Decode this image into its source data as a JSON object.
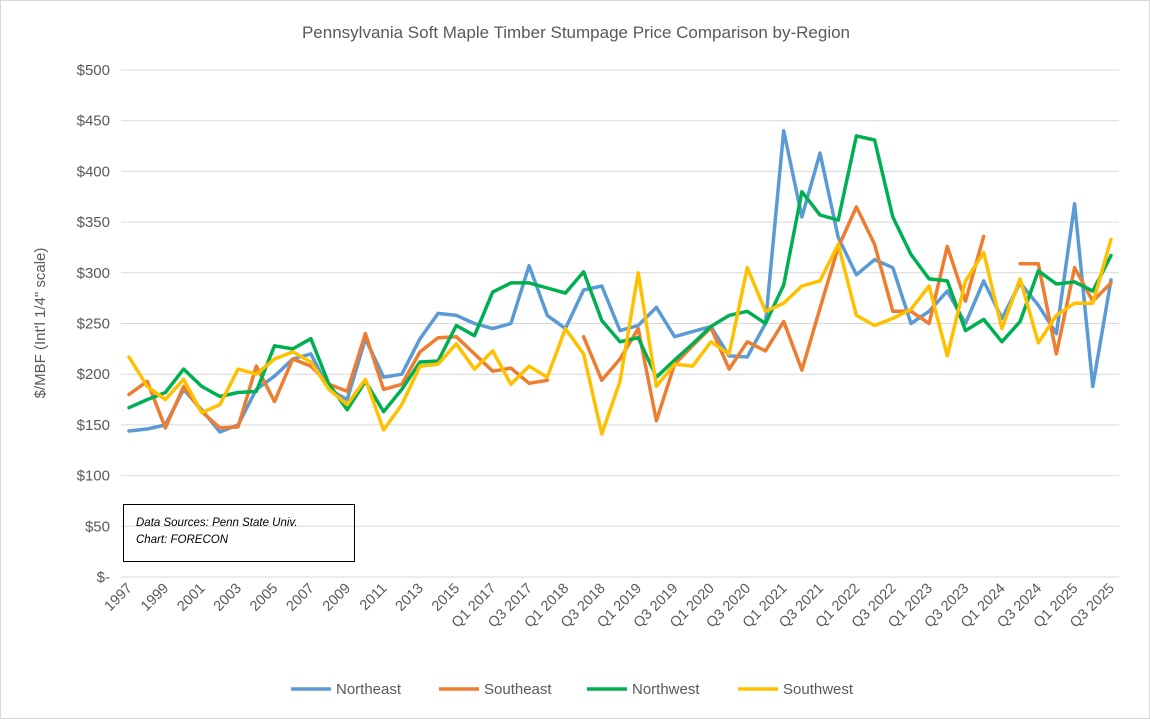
{
  "chart_data": {
    "type": "line",
    "title": "Pennsylvania Soft Maple Timber Stumpage Price Comparison by-Region",
    "xlabel": "",
    "ylabel": "$/MBF (Int'l 1/4\" scale)",
    "ylim": [
      0,
      500
    ],
    "yticks": [
      0,
      50,
      100,
      150,
      200,
      250,
      300,
      350,
      400,
      450,
      500
    ],
    "ytick_labels": [
      "$-",
      "$50",
      "$100",
      "$150",
      "$200",
      "$250",
      "$300",
      "$350",
      "$400",
      "$450",
      "$500"
    ],
    "grid": true,
    "legend_position": "bottom",
    "categories": [
      "1997",
      "1998",
      "1999",
      "2000",
      "2001",
      "2002",
      "2003",
      "2004",
      "2005",
      "2006",
      "2007",
      "2008",
      "2009",
      "2010",
      "2011",
      "2012",
      "2013",
      "2014",
      "2015",
      "2016",
      "Q1 2017",
      "Q2 2017",
      "Q3 2017",
      "Q4 2017",
      "Q1 2018",
      "Q2 2018",
      "Q3 2018",
      "Q4 2018",
      "Q1 2019",
      "Q2 2019",
      "Q3 2019",
      "Q4 2019",
      "Q1 2020",
      "Q2 2020",
      "Q3 2020",
      "Q4 2020",
      "Q1 2021",
      "Q2 2021",
      "Q3 2021",
      "Q4 2021",
      "Q1 2022",
      "Q2 2022",
      "Q3 2022",
      "Q4 2022",
      "Q1 2023",
      "Q2 2023",
      "Q3 2023",
      "Q4 2023",
      "Q1 2024",
      "Q2 2024",
      "Q3 2024",
      "Q4 2024",
      "Q1 2025",
      "Q2 2025",
      "Q3 2025"
    ],
    "series": [
      {
        "name": "Northeast",
        "color": "#5b9bd5",
        "values": [
          144,
          146,
          150,
          185,
          165,
          143,
          150,
          185,
          198,
          215,
          220,
          185,
          175,
          235,
          197,
          200,
          235,
          260,
          258,
          250,
          245,
          250,
          307,
          258,
          245,
          283,
          287,
          243,
          248,
          266,
          237,
          242,
          247,
          218,
          217,
          250,
          440,
          355,
          418,
          335,
          298,
          313,
          305,
          250,
          262,
          282,
          250,
          292,
          255,
          290,
          268,
          240,
          368,
          188,
          293
        ]
      },
      {
        "name": "Southeast",
        "color": "#ed7d31",
        "values": [
          180,
          193,
          147,
          188,
          163,
          147,
          148,
          208,
          173,
          215,
          208,
          190,
          183,
          240,
          185,
          190,
          222,
          236,
          237,
          220,
          203,
          206,
          191,
          194,
          null,
          237,
          194,
          215,
          245,
          154,
          210,
          228,
          246,
          205,
          232,
          223,
          252,
          204,
          265,
          325,
          365,
          328,
          262,
          262,
          250,
          326,
          272,
          336,
          null,
          309,
          309,
          220,
          305,
          272,
          290
        ]
      },
      {
        "name": "Northwest",
        "color": "#00b050",
        "values": [
          167,
          175,
          182,
          205,
          188,
          178,
          182,
          183,
          228,
          225,
          235,
          190,
          165,
          193,
          163,
          185,
          212,
          213,
          248,
          238,
          281,
          290,
          290,
          285,
          280,
          301,
          253,
          232,
          236,
          197,
          214,
          230,
          247,
          258,
          262,
          250,
          288,
          380,
          357,
          352,
          435,
          431,
          355,
          318,
          294,
          292,
          243,
          254,
          232,
          252,
          302,
          289,
          291,
          282,
          317
        ]
      },
      {
        "name": "Southwest",
        "color": "#ffc000",
        "values": [
          217,
          188,
          175,
          195,
          162,
          170,
          205,
          200,
          215,
          222,
          212,
          185,
          170,
          195,
          145,
          170,
          208,
          210,
          230,
          205,
          223,
          190,
          208,
          197,
          245,
          220,
          141,
          193,
          300,
          188,
          210,
          208,
          232,
          220,
          305,
          262,
          270,
          287,
          292,
          328,
          258,
          248,
          255,
          264,
          287,
          218,
          292,
          320,
          245,
          294,
          231,
          258,
          270,
          270,
          333
        ]
      }
    ]
  },
  "note": {
    "line1": "Data Sources: Penn State Univ.",
    "line2": "Chart: FORECON"
  }
}
